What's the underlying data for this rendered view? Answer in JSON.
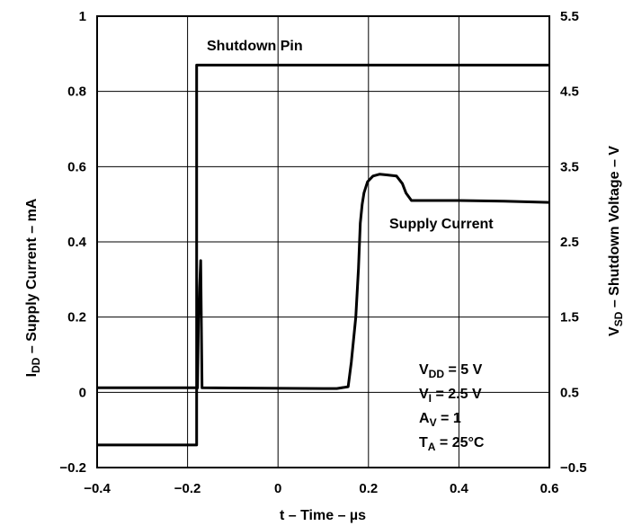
{
  "chart_data": {
    "type": "line",
    "title": "",
    "xlabel": {
      "prefix": "t – Time – ",
      "unit": "µs"
    },
    "ylabel_left": {
      "sym": "I",
      "sub": "DD",
      "rest": " – Supply Current – mA"
    },
    "ylabel_right": {
      "sym": "V",
      "sub": "SD",
      "rest": " – Shutdown Voltage – V"
    },
    "xlim": [
      -0.4,
      0.6
    ],
    "ylim_left": [
      -0.2,
      1
    ],
    "ylim_right": [
      -0.5,
      5.5
    ],
    "x_ticks": [
      "−0.4",
      "−0.2",
      "0",
      "0.2",
      "0.4",
      "0.6"
    ],
    "x_tick_values": [
      -0.4,
      -0.2,
      0,
      0.2,
      0.4,
      0.6
    ],
    "y_left_ticks": [
      "−0.2",
      "0",
      "0.2",
      "0.4",
      "0.6",
      "0.8",
      "1"
    ],
    "y_left_tick_values": [
      -0.2,
      0,
      0.2,
      0.4,
      0.6,
      0.8,
      1
    ],
    "y_right_ticks": [
      "−0.5",
      "0.5",
      "1.5",
      "2.5",
      "3.5",
      "4.5",
      "5.5"
    ],
    "y_right_tick_values": [
      -0.5,
      0.5,
      1.5,
      2.5,
      3.5,
      4.5,
      5.5
    ],
    "grid": true,
    "series": [
      {
        "name": "Shutdown Pin",
        "axis": "right",
        "x": [
          -0.4,
          -0.18,
          -0.18,
          0.6
        ],
        "y": [
          -0.2,
          -0.2,
          4.85,
          4.85
        ]
      },
      {
        "name": "Supply Current",
        "axis": "left",
        "x": [
          -0.4,
          -0.178,
          -0.176,
          -0.171,
          -0.168,
          0.1,
          0.13,
          0.155,
          0.162,
          0.172,
          0.178,
          0.182,
          0.186,
          0.19,
          0.198,
          0.21,
          0.225,
          0.24,
          0.262,
          0.275,
          0.283,
          0.295,
          0.4,
          0.5,
          0.6
        ],
        "y": [
          0.012,
          0.012,
          0.2,
          0.35,
          0.012,
          0.01,
          0.01,
          0.015,
          0.08,
          0.2,
          0.33,
          0.45,
          0.5,
          0.53,
          0.56,
          0.575,
          0.58,
          0.578,
          0.575,
          0.555,
          0.53,
          0.51,
          0.51,
          0.508,
          0.505
        ]
      }
    ],
    "annotations": {
      "shutdown_label": "Shutdown Pin",
      "supply_label": "Supply Current"
    },
    "conditions": [
      {
        "sym": "V",
        "sub": "DD",
        "rest": " = 5 V"
      },
      {
        "sym": "V",
        "sub": "I",
        "rest": " = 2.5 V"
      },
      {
        "sym": "A",
        "sub": "V",
        "rest": " = 1"
      },
      {
        "sym": "T",
        "sub": "A",
        "rest": " = 25°C"
      }
    ]
  }
}
